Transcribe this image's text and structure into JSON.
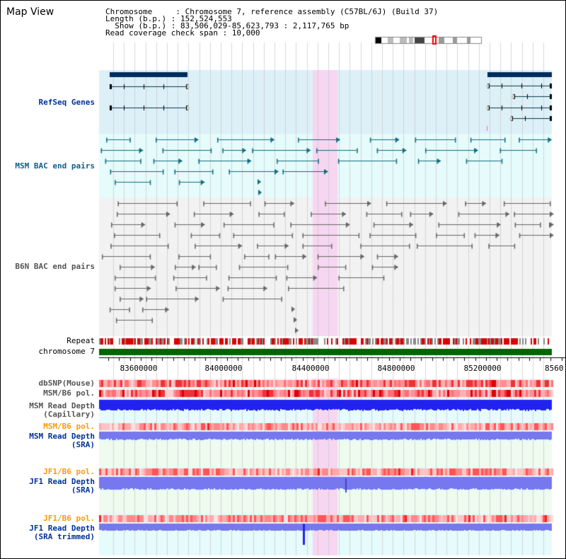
{
  "header": {
    "title": "Map View",
    "chromosome_line": "Chromosome     : Chromosome 7, reference assembly (C57BL/6J) (Build 37)",
    "length_line": "Length (b.p.) : 152,524,553",
    "show_line": "  Show (b.p.) : 83,506,029-85,623,793 : 2,117,765 bp",
    "coverage_line": "Read coverage check span : 10,000"
  },
  "tracks": {
    "refseq": "RefSeq Genes",
    "msm_bac": "MSM BAC end pairs",
    "b6n_bac": "B6N BAC end pairs",
    "repeat": "Repeat",
    "chromosome": "chromosome 7",
    "dbsnp": "dbSNP(Mouse)",
    "msm_b6_pol_1": "MSM/B6 pol.",
    "msm_read_depth_cap_1": "MSM Read Depth",
    "msm_read_depth_cap_2": "(Capillary)",
    "msm_b6_pol_2": "MSM/B6 pol.",
    "msm_read_depth_sra_1": "MSM Read Depth",
    "msm_read_depth_sra_2": "(SRA)",
    "jf1_b6_pol_1": "JF1/B6 pol.",
    "jf1_read_depth_sra_1": "JF1 Read Depth",
    "jf1_read_depth_sra_2": "(SRA)",
    "jf1_b6_pol_2": "JF1/B6 pol.",
    "jf1_read_depth_trim_1": "JF1 Read Depth",
    "jf1_read_depth_trim_2": "(SRA trimmed)"
  },
  "axis": {
    "ticks": [
      "83600000",
      "84000000",
      "84400000",
      "84800000",
      "85200000",
      "8560"
    ]
  },
  "colors": {
    "refseq_bg": "#ddf0f8",
    "bac_bg": "#e6fbfb",
    "highlight": "#f7d6f2",
    "gene": "#002b5c",
    "msm": "#0f6b80",
    "b6n": "#666666",
    "chromosome": "#006600",
    "depth_blue": "#2222ee",
    "depth_light": "#7777ee"
  }
}
